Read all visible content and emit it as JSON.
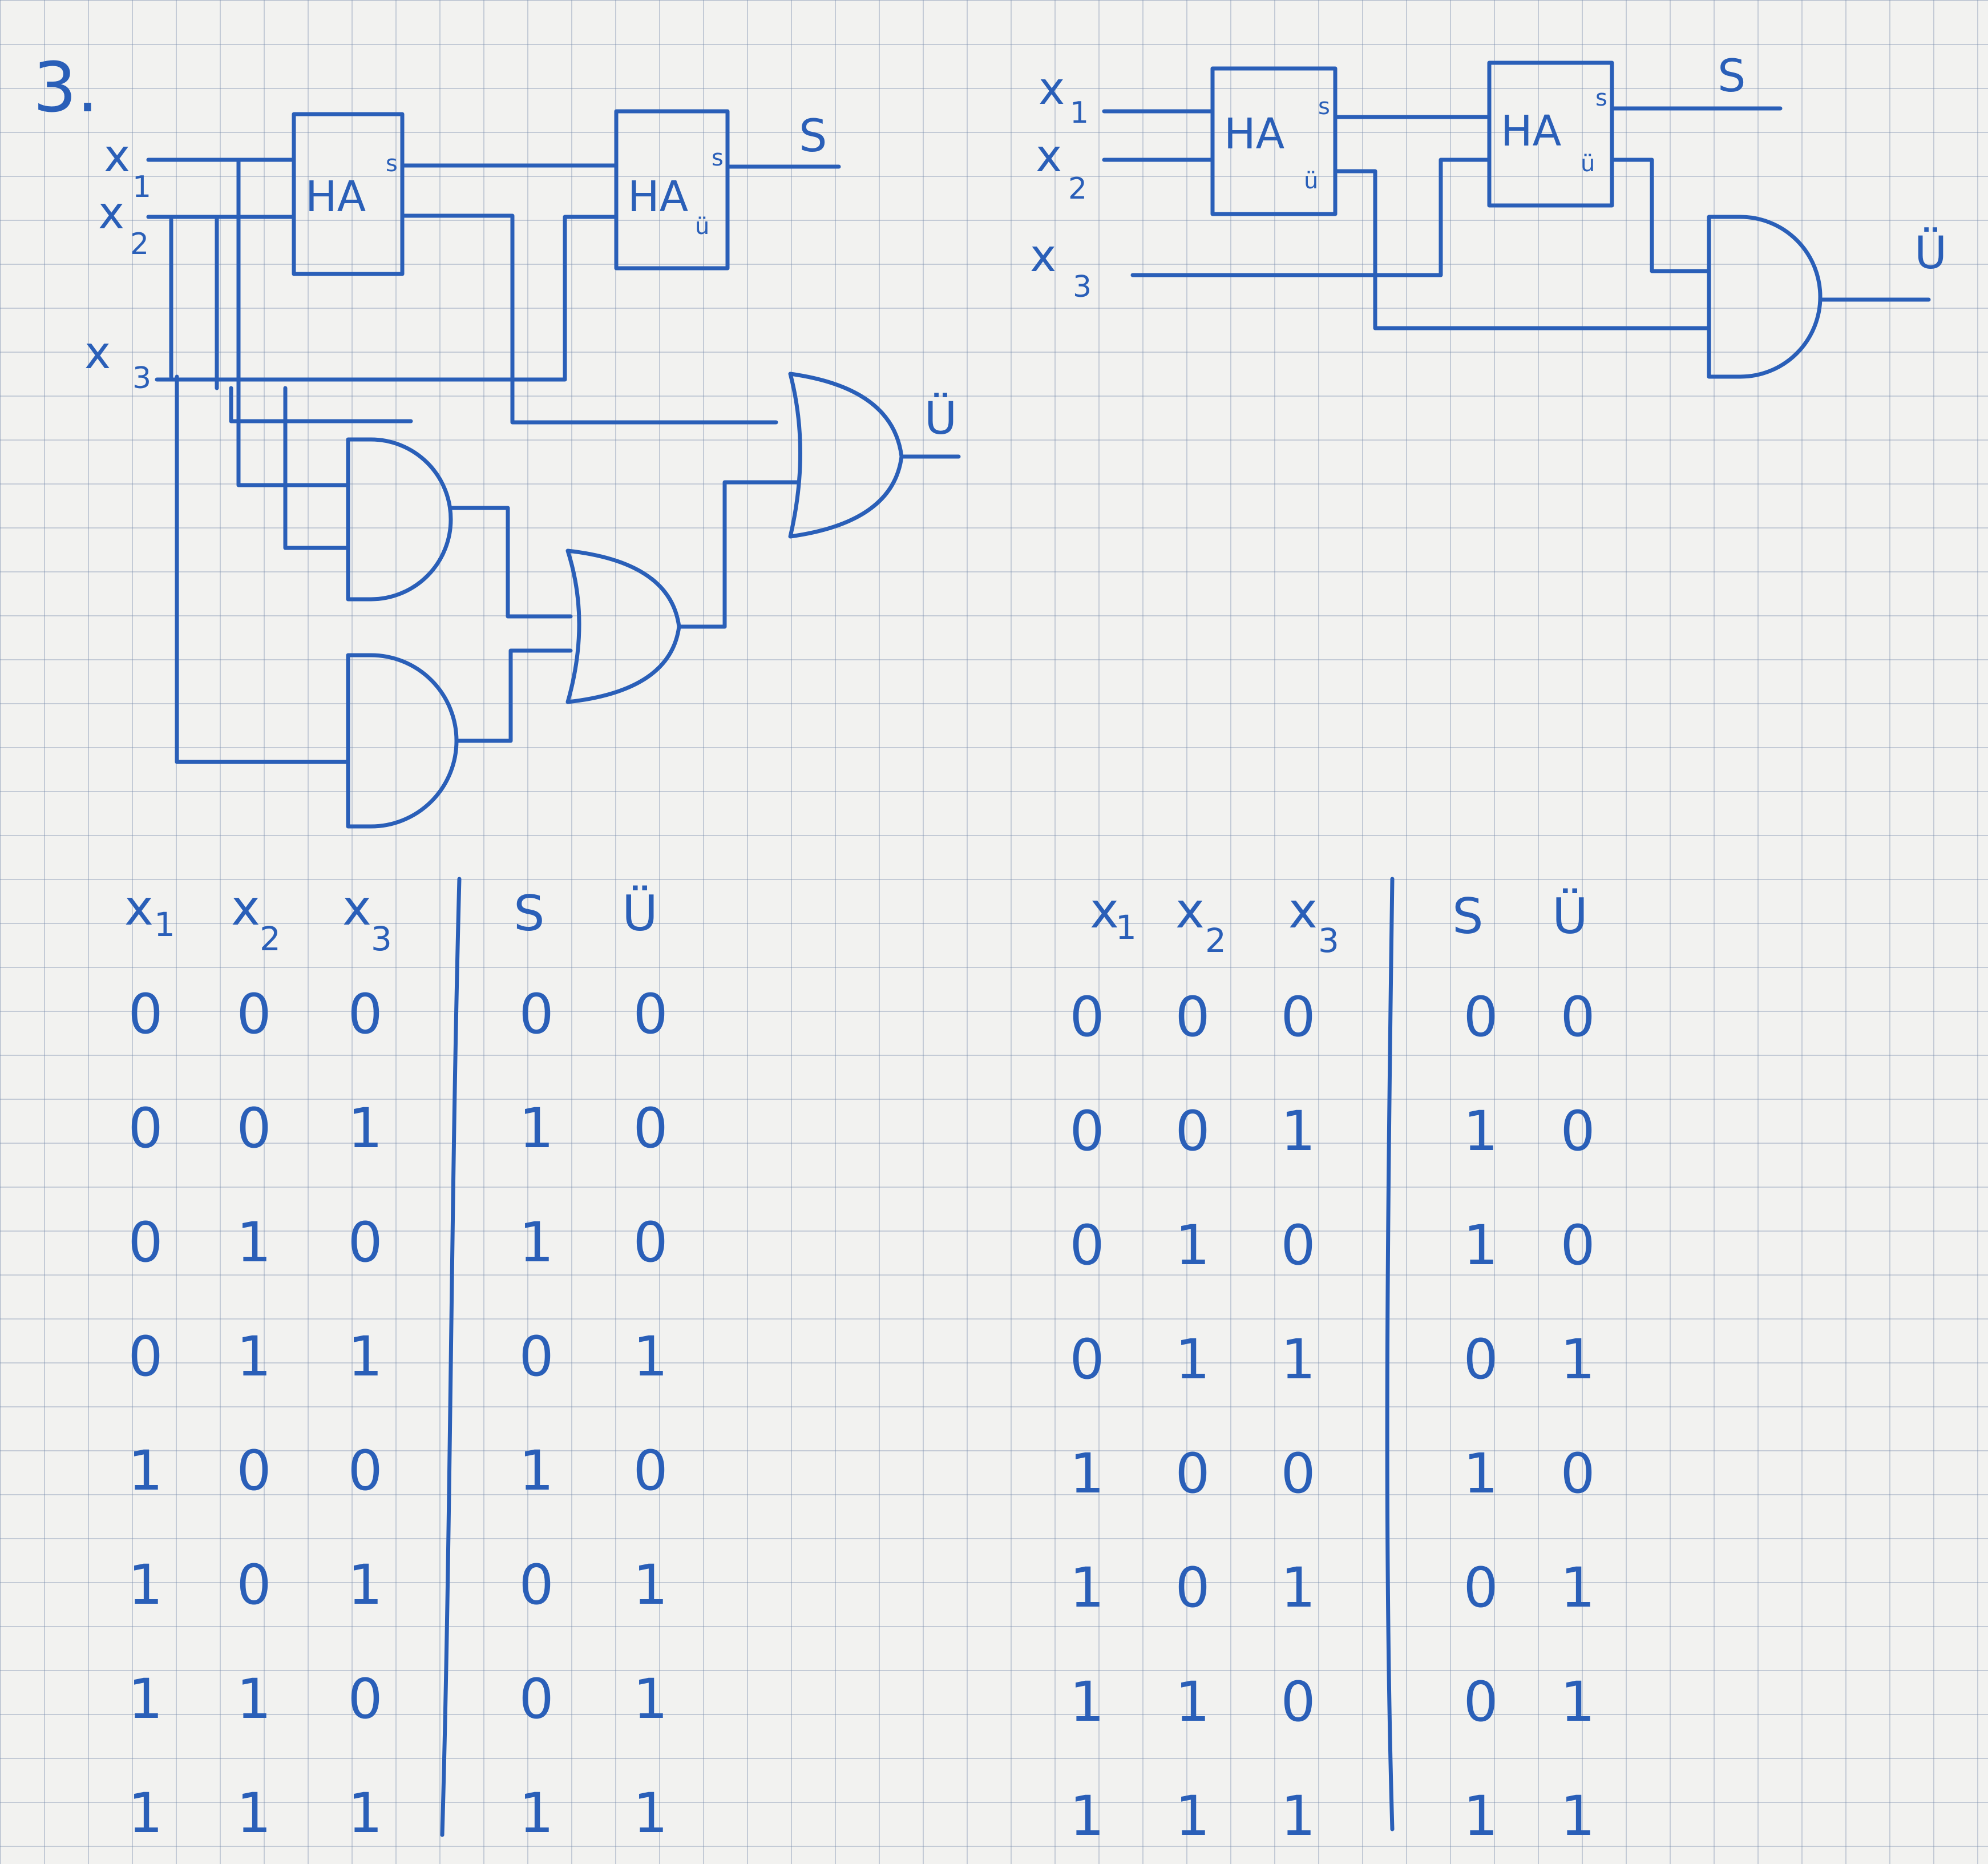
{
  "problem_number": "3.",
  "signals": {
    "x1": {
      "base": "x",
      "sub": "1"
    },
    "x2": {
      "base": "x",
      "sub": "2"
    },
    "x3": {
      "base": "x",
      "sub": "3"
    },
    "s": "S",
    "carry": "Ü"
  },
  "half_adder": {
    "label": "HA",
    "sum_pin": "s",
    "carry_pin": "ü",
    "carry_pin_alt": "ü"
  },
  "truth_tables": [
    {
      "columns": [
        "x1",
        "x2",
        "x3",
        "S",
        "Ü"
      ],
      "rows": [
        [
          "0",
          "0",
          "0",
          "0",
          "0"
        ],
        [
          "0",
          "0",
          "1",
          "1",
          "0"
        ],
        [
          "0",
          "1",
          "0",
          "1",
          "0"
        ],
        [
          "0",
          "1",
          "1",
          "0",
          "1"
        ],
        [
          "1",
          "0",
          "0",
          "1",
          "0"
        ],
        [
          "1",
          "0",
          "1",
          "0",
          "1"
        ],
        [
          "1",
          "1",
          "0",
          "0",
          "1"
        ],
        [
          "1",
          "1",
          "1",
          "1",
          "1"
        ]
      ]
    },
    {
      "columns": [
        "x1",
        "x2",
        "x3",
        "S",
        "Ü"
      ],
      "rows": [
        [
          "0",
          "0",
          "0",
          "0",
          "0"
        ],
        [
          "0",
          "0",
          "1",
          "1",
          "0"
        ],
        [
          "0",
          "1",
          "0",
          "1",
          "0"
        ],
        [
          "0",
          "1",
          "1",
          "0",
          "1"
        ],
        [
          "1",
          "0",
          "0",
          "1",
          "0"
        ],
        [
          "1",
          "0",
          "1",
          "0",
          "1"
        ],
        [
          "1",
          "1",
          "0",
          "0",
          "1"
        ],
        [
          "1",
          "1",
          "1",
          "1",
          "1"
        ]
      ]
    }
  ]
}
